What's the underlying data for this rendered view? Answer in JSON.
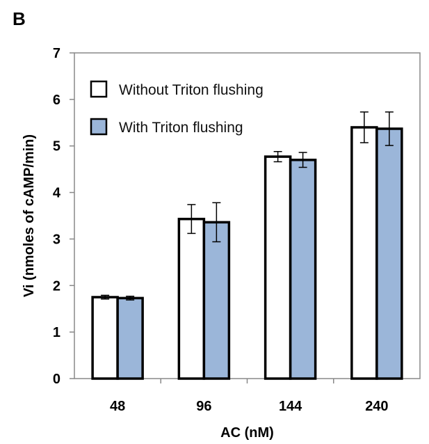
{
  "panel_label": "B",
  "chart_data": {
    "type": "bar",
    "categories": [
      "48",
      "96",
      "144",
      "240"
    ],
    "series": [
      {
        "name": "Without Triton flushing",
        "values": [
          1.75,
          3.43,
          4.77,
          5.4
        ],
        "errors": [
          0.04,
          0.31,
          0.11,
          0.33
        ],
        "color": "#ffffff"
      },
      {
        "name": "With Triton flushing",
        "values": [
          1.73,
          3.36,
          4.7,
          5.37
        ],
        "errors": [
          0.04,
          0.42,
          0.16,
          0.36
        ],
        "color": "#9bb6d9"
      }
    ],
    "xlabel": "AC (nM)",
    "ylabel": "Vi (nmoles of cAMP/min)",
    "ylim": [
      0,
      7
    ],
    "yticks": [
      "0",
      "1",
      "2",
      "3",
      "4",
      "5",
      "6",
      "7"
    ],
    "grid": false,
    "legend_position": "top-left",
    "bar_outline_color": "#000000",
    "axis_color": "#888888"
  }
}
